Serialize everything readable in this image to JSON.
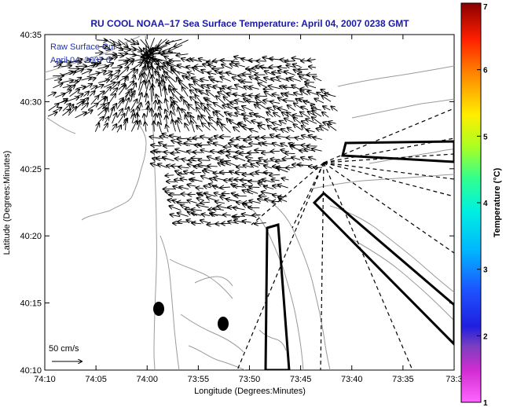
{
  "chart_data": {
    "type": "vector-field-map",
    "title": "RU COOL  NOAA–17  Sea Surface Temperature:  April 04, 2007 0238 GMT",
    "xlabel": "Longitude (Degrees:Minutes)",
    "ylabel": "Latitude (Degrees:Minutes)",
    "x_ticks": [
      "74:10",
      "74:05",
      "74:00",
      "73:55",
      "73:50",
      "73:45",
      "73:40",
      "73:35",
      "73:3"
    ],
    "y_ticks": [
      "40:35",
      "40:30",
      "40:25",
      "40:20",
      "40:15",
      "40:10"
    ],
    "xlim_minutes_west": [
      10,
      30
    ],
    "ylim_minutes_north": [
      10,
      35
    ],
    "annotation_line1": "Raw Surface Cur",
    "annotation_line2": "April 04, 2007 0",
    "scale_label": "50 cm/s",
    "colorbar": {
      "label": "Temperature (°C)",
      "ticks": [
        "1",
        "2",
        "3",
        "4",
        "5",
        "6",
        "7"
      ],
      "range": [
        1,
        7
      ]
    },
    "radar_sites": [
      {
        "lon_min_w": 8.9,
        "lat_min_n": 14.75
      },
      {
        "lon_min_w": 2.4,
        "lat_min_n": 13.5
      }
    ]
  },
  "colors": {
    "title": "#1a1aa8",
    "annotation": "#2233aa",
    "land_contour": "#999999",
    "vectors": "#000000"
  }
}
